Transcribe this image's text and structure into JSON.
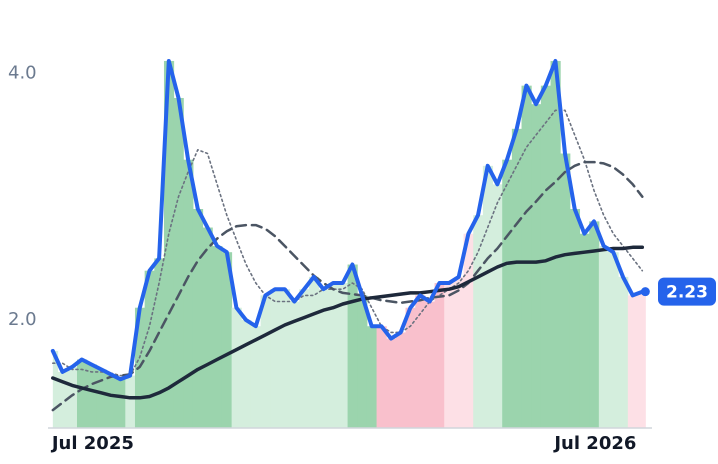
{
  "chart_data": {
    "type": "line",
    "x": [
      0,
      1,
      2,
      3,
      4,
      5,
      6,
      7,
      8,
      9,
      10,
      11,
      12,
      13,
      14,
      15,
      16,
      17,
      18,
      19,
      20,
      21,
      22,
      23,
      24,
      25,
      26,
      27,
      28,
      29,
      30,
      31,
      32,
      33,
      34,
      35,
      36,
      37,
      38,
      39,
      40,
      41,
      42,
      43,
      44,
      45,
      46,
      47,
      48,
      49,
      50,
      51,
      52,
      53,
      54,
      55,
      56,
      57,
      58,
      59,
      60,
      61
    ],
    "xlim": [
      -0.5,
      62
    ],
    "xticks": [
      {
        "value": 0,
        "label": "Jul 2025"
      },
      {
        "value": 52,
        "label": "Jul 2026"
      }
    ],
    "ylim": [
      1.125,
      4.27
    ],
    "yticks": [
      {
        "value": 2,
        "label": "2.0"
      },
      {
        "value": 4,
        "label": "4.0"
      }
    ],
    "grid": false,
    "series": [
      {
        "color": "#2563eb",
        "style": "solid",
        "width": 4,
        "end_label": "2.23",
        "values": [
          1.75,
          1.58,
          1.62,
          1.68,
          1.64,
          1.6,
          1.56,
          1.52,
          1.55,
          2.1,
          2.4,
          2.5,
          4.1,
          3.8,
          3.3,
          2.9,
          2.75,
          2.6,
          2.55,
          2.1,
          2.0,
          1.95,
          2.2,
          2.25,
          2.25,
          2.15,
          2.25,
          2.35,
          2.25,
          2.3,
          2.3,
          2.45,
          2.2,
          1.95,
          1.95,
          1.85,
          1.9,
          2.1,
          2.2,
          2.15,
          2.3,
          2.3,
          2.35,
          2.7,
          2.85,
          3.25,
          3.1,
          3.3,
          3.55,
          3.9,
          3.75,
          3.9,
          4.1,
          3.35,
          2.9,
          2.7,
          2.8,
          2.6,
          2.55,
          2.35,
          2.2,
          2.23
        ]
      },
      {
        "color": "#1e293b",
        "style": "solid",
        "width": 3.5,
        "values": [
          1.53,
          1.5,
          1.47,
          1.45,
          1.43,
          1.41,
          1.39,
          1.38,
          1.37,
          1.37,
          1.38,
          1.41,
          1.45,
          1.5,
          1.55,
          1.6,
          1.64,
          1.68,
          1.72,
          1.76,
          1.8,
          1.84,
          1.88,
          1.92,
          1.96,
          1.99,
          2.02,
          2.05,
          2.08,
          2.1,
          2.13,
          2.15,
          2.17,
          2.18,
          2.19,
          2.2,
          2.21,
          2.22,
          2.22,
          2.23,
          2.24,
          2.25,
          2.27,
          2.31,
          2.35,
          2.39,
          2.43,
          2.46,
          2.47,
          2.47,
          2.47,
          2.48,
          2.51,
          2.53,
          2.54,
          2.55,
          2.56,
          2.57,
          2.58,
          2.58,
          2.59,
          2.59
        ]
      },
      {
        "color": "#4b5563",
        "style": "dashed",
        "width": 2.5,
        "values": [
          1.27,
          1.33,
          1.39,
          1.44,
          1.48,
          1.51,
          1.54,
          1.55,
          1.56,
          1.62,
          1.75,
          1.9,
          2.05,
          2.2,
          2.35,
          2.48,
          2.58,
          2.66,
          2.72,
          2.76,
          2.77,
          2.77,
          2.74,
          2.68,
          2.6,
          2.52,
          2.44,
          2.36,
          2.3,
          2.25,
          2.22,
          2.21,
          2.2,
          2.18,
          2.16,
          2.15,
          2.14,
          2.15,
          2.16,
          2.18,
          2.19,
          2.2,
          2.24,
          2.3,
          2.4,
          2.5,
          2.58,
          2.68,
          2.78,
          2.88,
          2.96,
          3.05,
          3.12,
          3.2,
          3.25,
          3.28,
          3.28,
          3.27,
          3.24,
          3.18,
          3.1,
          3.0
        ]
      },
      {
        "color": "#6b7280",
        "style": "dotted",
        "width": 1.6,
        "values": [
          1.65,
          1.65,
          1.6,
          1.6,
          1.58,
          1.58,
          1.57,
          1.55,
          1.55,
          1.7,
          1.95,
          2.3,
          2.7,
          3.0,
          3.2,
          3.38,
          3.35,
          3.1,
          2.85,
          2.65,
          2.45,
          2.3,
          2.2,
          2.15,
          2.15,
          2.15,
          2.2,
          2.2,
          2.25,
          2.25,
          2.25,
          2.3,
          2.25,
          2.1,
          1.95,
          1.9,
          1.9,
          1.95,
          2.05,
          2.15,
          2.2,
          2.25,
          2.3,
          2.4,
          2.55,
          2.75,
          2.95,
          3.1,
          3.25,
          3.4,
          3.5,
          3.6,
          3.7,
          3.7,
          3.5,
          3.3,
          3.05,
          2.85,
          2.7,
          2.6,
          2.5,
          2.4
        ]
      }
    ],
    "band_colors": [
      "#d4eedd",
      "#d4eedd",
      "#d4eedd",
      "#9bd4ad",
      "#9bd4ad",
      "#9bd4ad",
      "#9bd4ad",
      "#9bd4ad",
      "#d4eedd",
      "#9bd4ad",
      "#9bd4ad",
      "#9bd4ad",
      "#9bd4ad",
      "#9bd4ad",
      "#9bd4ad",
      "#9bd4ad",
      "#9bd4ad",
      "#9bd4ad",
      "#9bd4ad",
      "#d4eedd",
      "#d4eedd",
      "#d4eedd",
      "#d4eedd",
      "#d4eedd",
      "#d4eedd",
      "#d4eedd",
      "#d4eedd",
      "#d4eedd",
      "#d4eedd",
      "#d4eedd",
      "#d4eedd",
      "#9bd4ad",
      "#9bd4ad",
      "#9bd4ad",
      "#f9c0cc",
      "#f9c0cc",
      "#f9c0cc",
      "#f9c0cc",
      "#f9c0cc",
      "#f9c0cc",
      "#f9c0cc",
      "#fde0e6",
      "#fde0e6",
      "#fde0e6",
      "#d4eedd",
      "#d4eedd",
      "#d4eedd",
      "#9bd4ad",
      "#9bd4ad",
      "#9bd4ad",
      "#9bd4ad",
      "#9bd4ad",
      "#9bd4ad",
      "#9bd4ad",
      "#9bd4ad",
      "#9bd4ad",
      "#9bd4ad",
      "#d4eedd",
      "#d4eedd",
      "#d4eedd",
      "#fde0e6",
      "#fde0e6"
    ]
  }
}
